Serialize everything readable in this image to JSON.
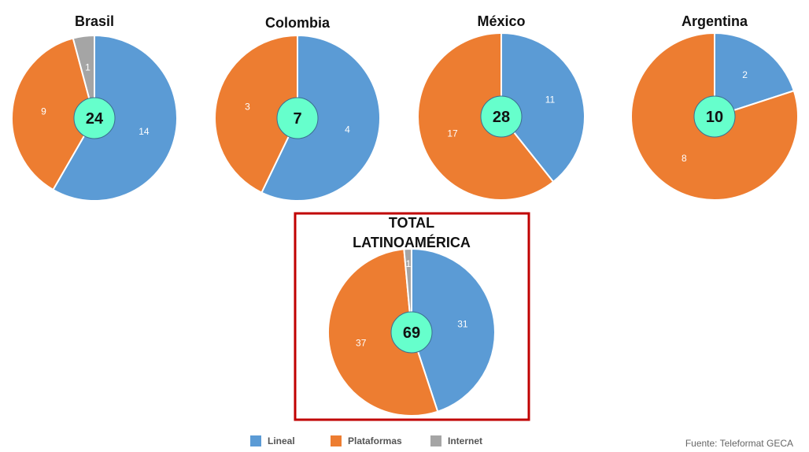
{
  "chart_data": [
    {
      "type": "pie",
      "title": "Brasil",
      "total": "24",
      "series": [
        {
          "name": "Lineal",
          "value": 14
        },
        {
          "name": "Plataformas",
          "value": 9
        },
        {
          "name": "Internet",
          "value": 1
        }
      ]
    },
    {
      "type": "pie",
      "title": "Colombia",
      "total": "7",
      "series": [
        {
          "name": "Lineal",
          "value": 4
        },
        {
          "name": "Plataformas",
          "value": 3
        }
      ]
    },
    {
      "type": "pie",
      "title": "México",
      "total": "28",
      "series": [
        {
          "name": "Lineal",
          "value": 11
        },
        {
          "name": "Plataformas",
          "value": 17
        }
      ]
    },
    {
      "type": "pie",
      "title": "Argentina",
      "total": "10",
      "series": [
        {
          "name": "Lineal",
          "value": 2
        },
        {
          "name": "Plataformas",
          "value": 8
        }
      ]
    },
    {
      "type": "pie",
      "title": "TOTAL LATINOAMÉRICA",
      "title_lines": [
        "TOTAL",
        "LATINOAMÉRICA"
      ],
      "total": "69",
      "series": [
        {
          "name": "Lineal",
          "value": 31
        },
        {
          "name": "Plataformas",
          "value": 37
        },
        {
          "name": "Internet",
          "value": 1
        }
      ]
    }
  ],
  "legend": {
    "placement": "bottom",
    "items": [
      {
        "name": "Lineal",
        "color": "#5B9BD5"
      },
      {
        "name": "Plataformas",
        "color": "#ED7D31"
      },
      {
        "name": "Internet",
        "color": "#A5A5A5"
      }
    ]
  },
  "colors": {
    "center_badge": "#66FFCC",
    "highlight_border": "#C00000"
  },
  "source": "Fuente: Teleformat GECA"
}
